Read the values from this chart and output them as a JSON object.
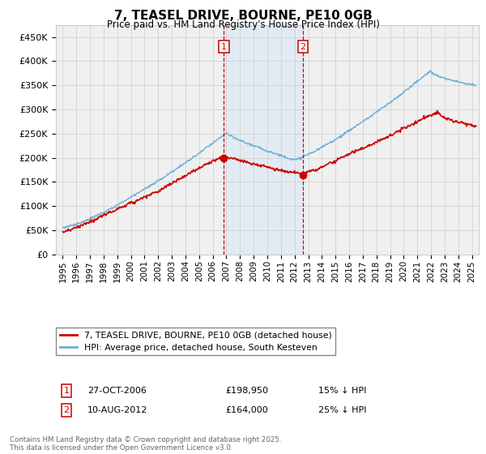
{
  "title": "7, TEASEL DRIVE, BOURNE, PE10 0GB",
  "subtitle": "Price paid vs. HM Land Registry's House Price Index (HPI)",
  "legend_line1": "7, TEASEL DRIVE, BOURNE, PE10 0GB (detached house)",
  "legend_line2": "HPI: Average price, detached house, South Kesteven",
  "annotation1_date": "27-OCT-2006",
  "annotation1_price": "£198,950",
  "annotation1_text": "15% ↓ HPI",
  "annotation2_date": "10-AUG-2012",
  "annotation2_price": "£164,000",
  "annotation2_text": "25% ↓ HPI",
  "sale1_year": 2006.82,
  "sale1_price": 198950,
  "sale2_year": 2012.61,
  "sale2_price": 164000,
  "hpi_color": "#6baed6",
  "price_color": "#cc0000",
  "annotation_box_color": "#cc0000",
  "vline_color": "#cc0000",
  "shade_color": "#ddeaf5",
  "background_color": "#f0f0f0",
  "ylim": [
    0,
    475000
  ],
  "xlim_start": 1994.5,
  "xlim_end": 2025.5,
  "footer": "Contains HM Land Registry data © Crown copyright and database right 2025.\nThis data is licensed under the Open Government Licence v3.0."
}
